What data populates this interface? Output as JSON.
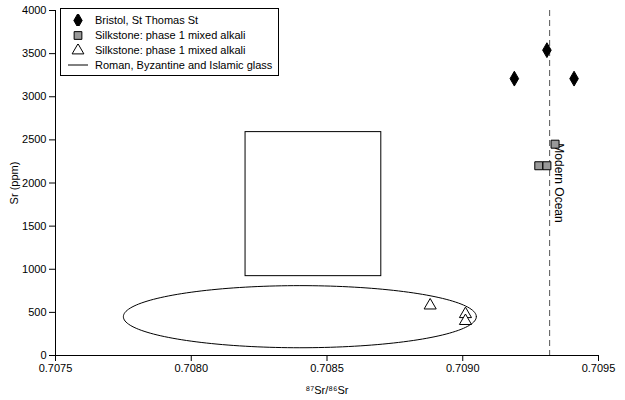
{
  "chart_data": {
    "type": "scatter",
    "x_label": "⁸⁷Sr/⁸⁶Sr",
    "y_label": "Sr (ppm)",
    "xlim": [
      0.7075,
      0.7095
    ],
    "xticks": [
      0.7075,
      {
        "value": 0.708,
        "label": "0.7080"
      },
      0.7085,
      {
        "value": 0.709,
        "label": "0.7090"
      },
      0.7095
    ],
    "ylim": [
      0,
      4000
    ],
    "yticks": [
      0,
      500,
      1000,
      1500,
      2000,
      2500,
      3000,
      3500,
      4000
    ],
    "grid": false,
    "legend": "top-left",
    "series": [
      {
        "name": "Bristol, St Thomas St",
        "color": "#000000",
        "marker": "diamond",
        "x": [
          0.70919,
          0.70931,
          0.70941
        ],
        "values": [
          3210,
          3540,
          3210
        ]
      },
      {
        "name": "Silkstone: phase 1 mixed alkali",
        "color": "#999999",
        "marker": "square",
        "x": [
          0.70928,
          0.70931,
          0.70934
        ],
        "values": [
          2200,
          2200,
          2450
        ]
      },
      {
        "name": "Silkstone: phase 1 mixed alkali",
        "color": "#ffffff",
        "marker": "triangle",
        "x": [
          0.70888,
          0.70901,
          0.70901
        ],
        "values": [
          580,
          480,
          400
        ]
      },
      {
        "name": "Roman, Byzantine and Islamic glass",
        "type": "region",
        "color": "#000000",
        "marker": "line",
        "regions": [
          {
            "shape": "rectangle",
            "x": [
              0.7082,
              0.7087
            ],
            "y": [
              920,
              2590
            ]
          },
          {
            "shape": "ellipse",
            "x": [
              0.70775,
              0.70905
            ],
            "y": [
              90,
              810
            ]
          }
        ]
      }
    ],
    "annotations": [
      {
        "text": "Modern Ocean",
        "x": 0.70932,
        "line_style": "dashed"
      }
    ]
  }
}
